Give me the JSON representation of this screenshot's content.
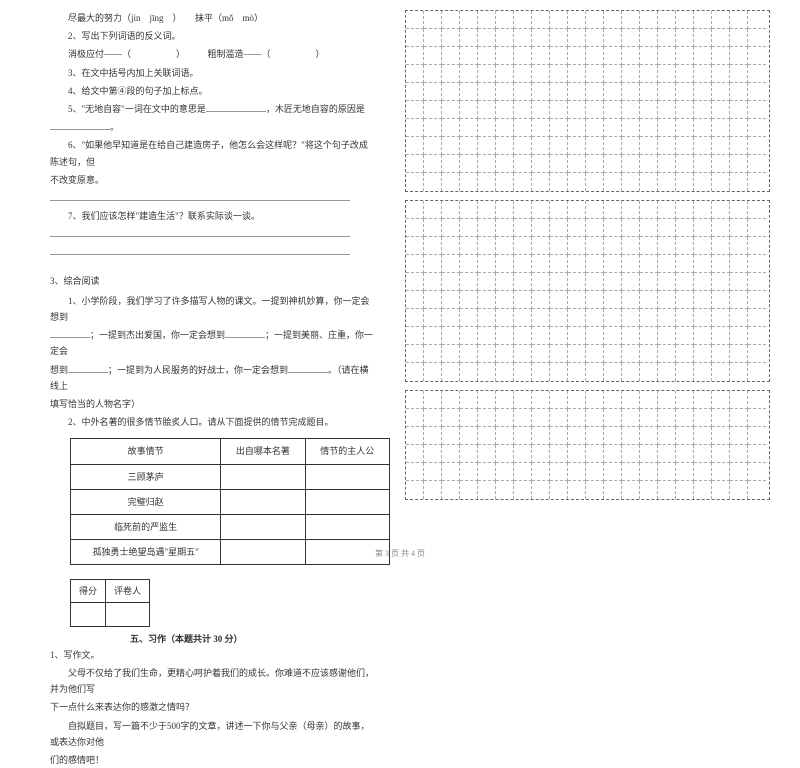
{
  "left": {
    "q1_1": "尽最大的努力（jìn　jīng　）　　抹平（mǒ　mò）",
    "q2": "2、写出下列词语的反义词。",
    "q2_line": "消极应付——（　　　　　）　　　粗制滥造——（　　　　　）",
    "q3": "3、在文中括号内加上关联词语。",
    "q4": "4、给文中第④段的句子加上标点。",
    "q5a": "5、\"无地自容\"一词在文中的意思是",
    "q5b": "，木匠无地自容的原因是",
    "q5c": "。",
    "q6a": "6、\"如果他早知道是在给自己建造房子，他怎么会这样呢？\"将这个句子改成陈述句，但",
    "q6b": "不改变原意。",
    "q7": "7、我们应该怎样\"建造生活\"？联系实际谈一谈。",
    "s3_title": "3、综合阅读",
    "s3_q1a": "1、小学阶段，我们学习了许多描写人物的课文。一提到神机妙算，你一定会想到",
    "s3_q1b": "；一提到杰出爱国，你一定会想到",
    "s3_q1c": "；一提到美丽、庄重，你一定会",
    "s3_q1d": "想到",
    "s3_q1e": "；一提到为人民服务的好战士，你一定会想到",
    "s3_q1f": "。（请在横线上",
    "s3_q1g": "填写恰当的人物名字）",
    "s3_q2": "2、中外名著的很多情节脍炙人口。请从下面提供的情节完成题目。",
    "table": {
      "headers": [
        "故事情节",
        "出自哪本名著",
        "情节的主人公"
      ],
      "rows": [
        [
          "三顾茅庐",
          "",
          ""
        ],
        [
          "完璧归赵",
          "",
          ""
        ],
        [
          "临死前的严监生",
          "",
          ""
        ],
        [
          "孤独勇士绝望岛遇\"星期五\"",
          "",
          ""
        ]
      ]
    },
    "score_labels": [
      "得分",
      "评卷人"
    ],
    "sect5": "五、习作（本题共计 30 分）",
    "w1": "1、写作文。",
    "w1a": "父母不仅给了我们生命，更精心呵护着我们的成长。你难道不应该感谢他们，并为他们写",
    "w1b": "下一点什么来表达你的感激之情吗？",
    "w1c": "自拟题目，写一篇不少于500字的文章，讲述一下你与父亲（母亲）的故事，或表达你对他",
    "w1d": "们的感情吧！"
  },
  "grid": {
    "blocks": 3,
    "rows_per_block": [
      10,
      10,
      6
    ],
    "cols": 20
  },
  "footer": "第 3 页 共 4 页"
}
